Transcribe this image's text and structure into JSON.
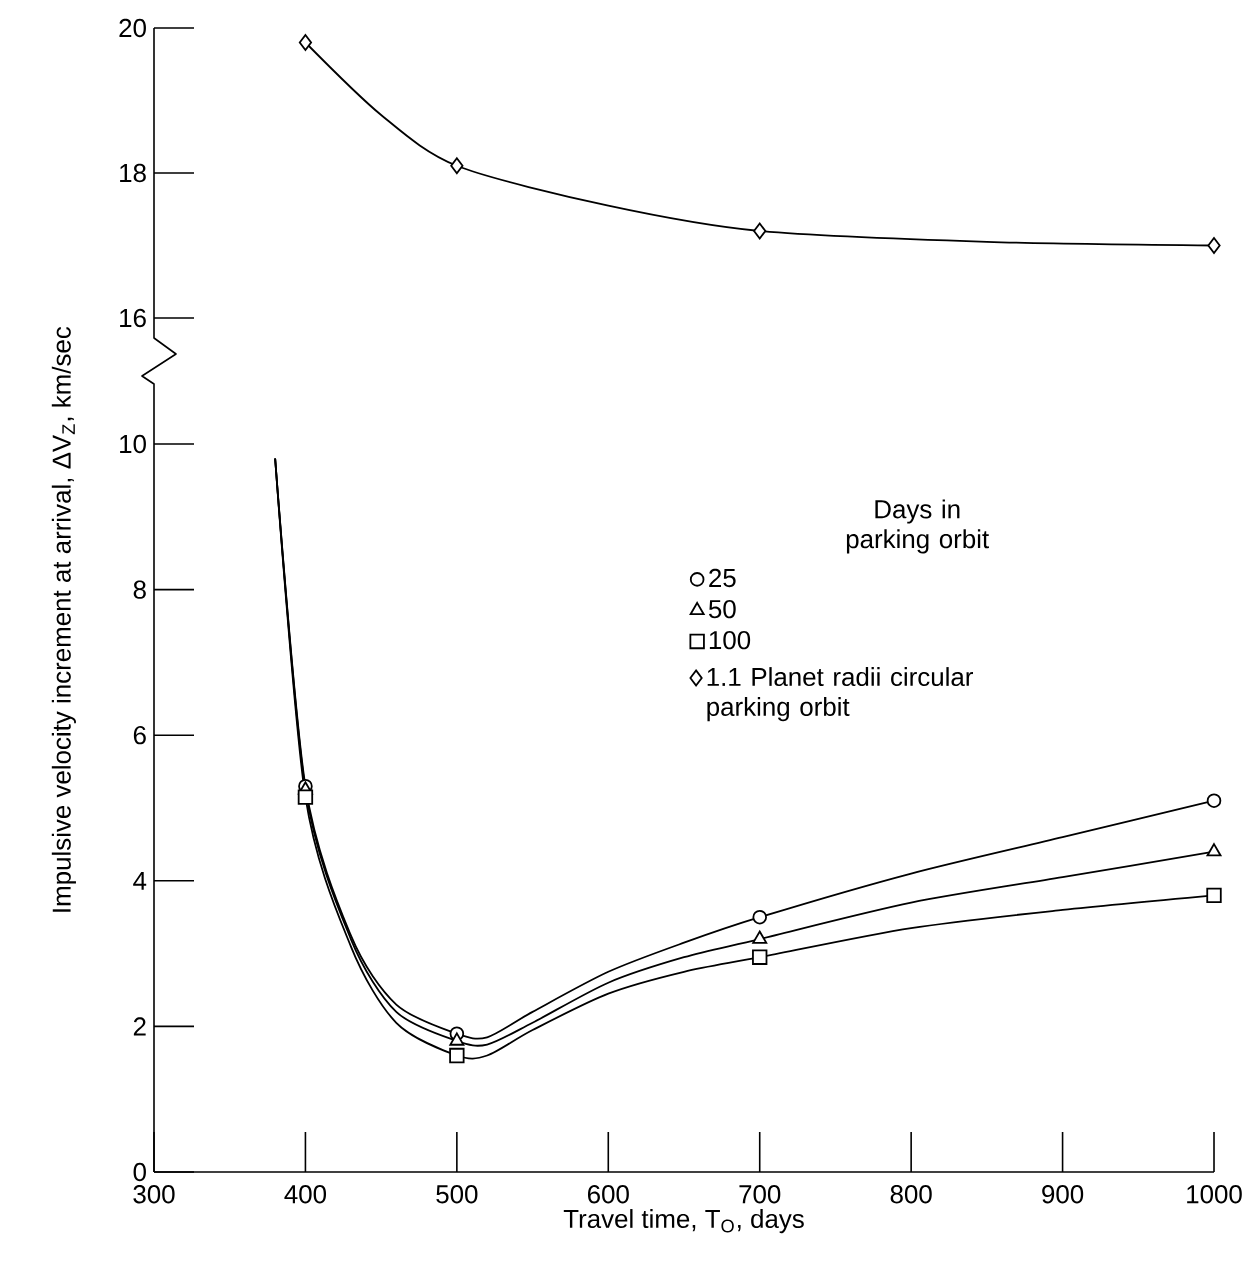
{
  "chart_data": [
    {
      "type": "line",
      "legend": "bottom right",
      "xlim": [
        300,
        1000
      ],
      "ylim": [
        16,
        20
      ],
      "yticks": [
        16,
        18,
        20
      ],
      "tick_labels": "y",
      "series": [
        {
          "type": "line",
          "color": "#000000",
          "marker": "none",
          "x": [
            400,
            450,
            500,
            600,
            700,
            850,
            1000
          ],
          "values": [
            19.8,
            18.8,
            18.1,
            17.55,
            17.2,
            17.05,
            17.0
          ]
        },
        {
          "type": "scatter",
          "name": "1.1 Planet radii circular parking orbit",
          "color": "#000000",
          "marker": "diamond",
          "x": [
            400,
            500,
            700,
            1000
          ],
          "values": [
            19.8,
            18.1,
            17.2,
            17.0
          ]
        }
      ]
    },
    {
      "type": "line",
      "xlabel": "Travel time, T$_{O}$, days",
      "ylabel": "Impulsive velocity increment at arrival, ΔV$_{Z}$, km/sec",
      "legend_title": "Days in parking orbit",
      "legend": "top right",
      "xlim": [
        300,
        1000
      ],
      "ylim": [
        0,
        10
      ],
      "xticks": [
        300,
        400,
        500,
        600,
        700,
        800,
        900,
        1000
      ],
      "yticks": [
        0,
        2,
        4,
        6,
        8,
        10
      ],
      "series": [
        {
          "type": "line",
          "color": "#000000",
          "marker": "none",
          "x": [
            380,
            400,
            430,
            460,
            500,
            520,
            550,
            600,
            650,
            700,
            800,
            900,
            1000
          ],
          "values": [
            9.8,
            5.3,
            3.25,
            2.3,
            1.9,
            1.85,
            2.2,
            2.75,
            3.15,
            3.5,
            4.1,
            4.6,
            5.1
          ]
        },
        {
          "type": "line",
          "color": "#000000",
          "marker": "none",
          "x": [
            380,
            400,
            430,
            460,
            500,
            520,
            550,
            600,
            650,
            700,
            800,
            900,
            1000
          ],
          "values": [
            9.8,
            5.25,
            3.2,
            2.2,
            1.8,
            1.75,
            2.05,
            2.6,
            2.95,
            3.2,
            3.7,
            4.05,
            4.4
          ]
        },
        {
          "type": "line",
          "color": "#000000",
          "marker": "none",
          "x": [
            380,
            400,
            430,
            460,
            500,
            520,
            550,
            600,
            650,
            700,
            800,
            900,
            1000
          ],
          "values": [
            9.8,
            5.15,
            3.1,
            2.05,
            1.6,
            1.6,
            1.95,
            2.45,
            2.75,
            2.95,
            3.35,
            3.6,
            3.8
          ]
        },
        {
          "type": "scatter",
          "name": "25",
          "color": "#000000",
          "marker": "circle",
          "x": [
            400,
            500,
            700,
            1000
          ],
          "values": [
            5.3,
            1.9,
            3.5,
            5.1
          ]
        },
        {
          "type": "scatter",
          "name": "50",
          "color": "#000000",
          "marker": "triangle",
          "x": [
            400,
            500,
            700,
            1000
          ],
          "values": [
            5.25,
            1.8,
            3.2,
            4.4
          ]
        },
        {
          "type": "scatter",
          "name": "100",
          "color": "#000000",
          "marker": "square",
          "x": [
            400,
            500,
            700,
            1000
          ],
          "values": [
            5.15,
            1.6,
            2.95,
            3.8
          ]
        }
      ]
    }
  ]
}
